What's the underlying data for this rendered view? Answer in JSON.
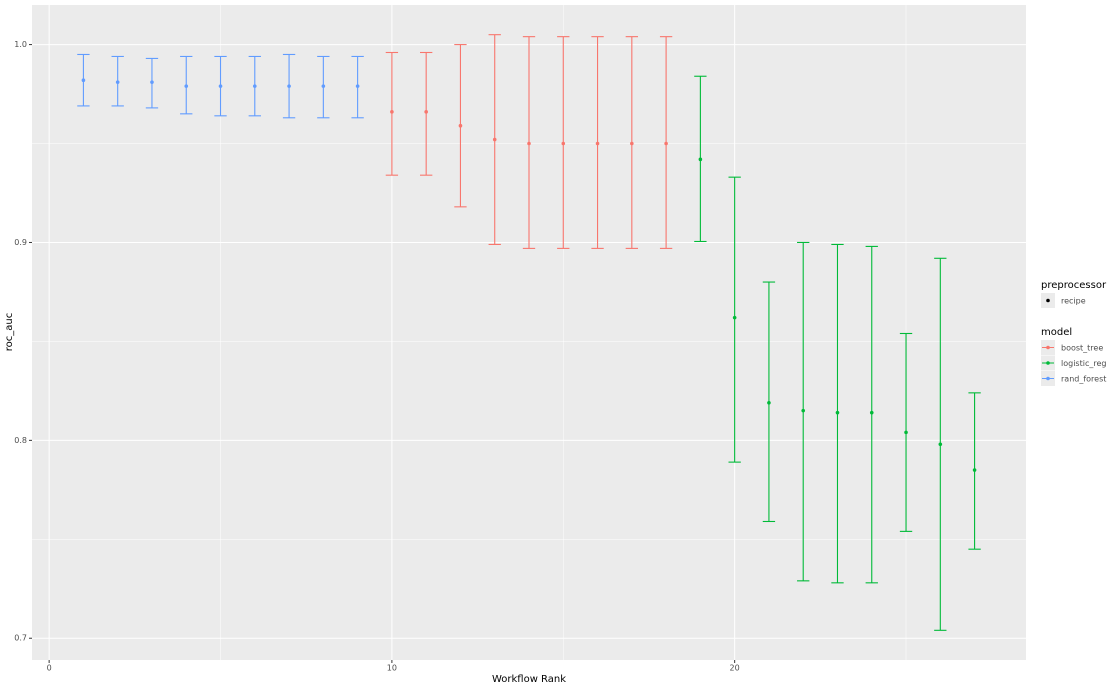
{
  "chart_data": {
    "type": "errorbar",
    "x_label": "Workflow Rank",
    "y_label": "roc_auc",
    "xlim": [
      -0.5,
      28.5
    ],
    "ylim": [
      0.689,
      1.02
    ],
    "xticks": [
      0,
      10,
      20
    ],
    "yticks": [
      {
        "value": 0.7,
        "label": "0.7"
      },
      {
        "value": 0.8,
        "label": "0.8"
      },
      {
        "value": 0.9,
        "label": "0.9"
      },
      {
        "value": 1.0,
        "label": "1.0"
      }
    ],
    "x_minor": [
      5,
      15,
      25
    ],
    "y_minor": [
      0.75,
      0.85,
      0.95
    ],
    "grid": true,
    "legend_position": "right",
    "preprocessor_legend": {
      "title": "preprocessor",
      "entries": [
        "recipe"
      ],
      "color": "#000000"
    },
    "legend_title": "model",
    "series": [
      {
        "name": "boost_tree",
        "color": "#F8766D",
        "x": [
          10,
          11,
          12,
          13,
          14,
          15,
          16,
          17,
          18
        ],
        "values": [
          0.966,
          0.966,
          0.959,
          0.952,
          0.95,
          0.95,
          0.95,
          0.95,
          0.95
        ],
        "lower": [
          0.934,
          0.934,
          0.918,
          0.899,
          0.897,
          0.897,
          0.897,
          0.897,
          0.897
        ],
        "upper": [
          0.996,
          0.996,
          1.0,
          1.005,
          1.004,
          1.004,
          1.004,
          1.004,
          1.004
        ]
      },
      {
        "name": "logistic_reg",
        "color": "#00BA38",
        "x": [
          19,
          20,
          21,
          22,
          23,
          24,
          25,
          26,
          27
        ],
        "values": [
          0.942,
          0.862,
          0.819,
          0.815,
          0.814,
          0.814,
          0.804,
          0.798,
          0.785
        ],
        "lower": [
          0.9005,
          0.789,
          0.759,
          0.729,
          0.728,
          0.728,
          0.754,
          0.704,
          0.745
        ],
        "upper": [
          0.984,
          0.933,
          0.88,
          0.9,
          0.899,
          0.898,
          0.854,
          0.892,
          0.824
        ]
      },
      {
        "name": "rand_forest",
        "color": "#619CFF",
        "x": [
          1,
          2,
          3,
          4,
          5,
          6,
          7,
          8,
          9
        ],
        "values": [
          0.982,
          0.981,
          0.981,
          0.979,
          0.979,
          0.979,
          0.979,
          0.979,
          0.979
        ],
        "lower": [
          0.969,
          0.969,
          0.968,
          0.965,
          0.964,
          0.964,
          0.963,
          0.963,
          0.963
        ],
        "upper": [
          0.995,
          0.994,
          0.993,
          0.994,
          0.994,
          0.994,
          0.995,
          0.994,
          0.994
        ]
      }
    ]
  }
}
